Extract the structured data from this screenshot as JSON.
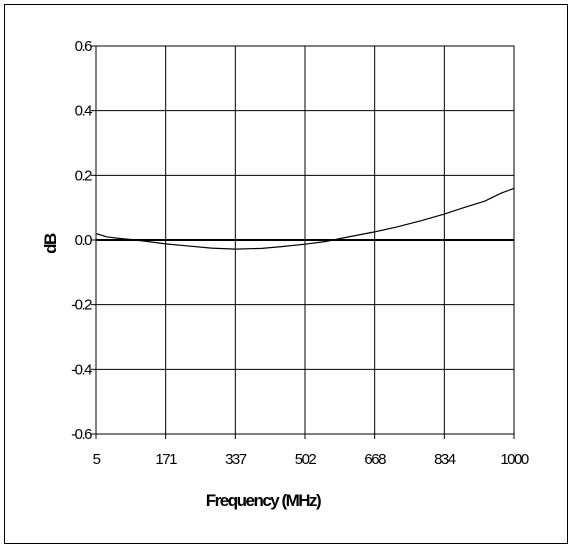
{
  "chart_data": {
    "type": "line",
    "xlabel": "Frequency (MHz)",
    "ylabel": "dB",
    "x_tick_labels": [
      "5",
      "171",
      "337",
      "502",
      "668",
      "834",
      "1000"
    ],
    "y_tick_labels": [
      "0.6",
      "0.4",
      "0.2",
      "0.0",
      "-0.2",
      "-0.4",
      "-0.6"
    ],
    "xlim": [
      5,
      1000
    ],
    "ylim": [
      -0.6,
      0.6
    ],
    "grid": true,
    "line_color": "#000000",
    "series": [
      {
        "x": [
          5,
          30,
          60,
          100,
          171,
          220,
          280,
          337,
          400,
          450,
          502,
          550,
          600,
          668,
          720,
          780,
          834,
          880,
          930,
          970,
          1000
        ],
        "y": [
          0.02,
          0.01,
          0.005,
          0.0,
          -0.012,
          -0.018,
          -0.025,
          -0.028,
          -0.026,
          -0.02,
          -0.013,
          -0.005,
          0.008,
          0.025,
          0.04,
          0.06,
          0.08,
          0.1,
          0.12,
          0.145,
          0.16
        ]
      }
    ]
  }
}
